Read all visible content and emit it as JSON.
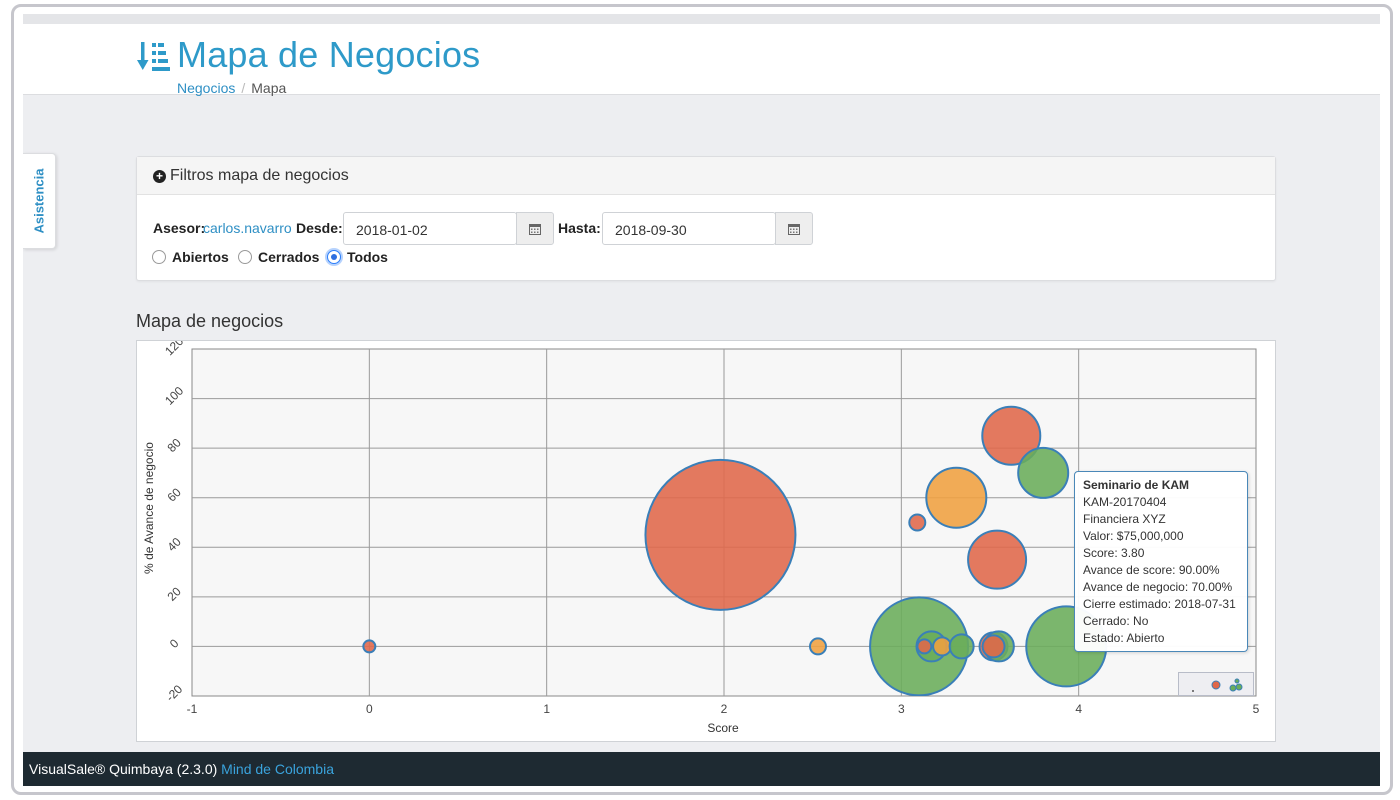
{
  "header": {
    "title": "Mapa de Negocios",
    "breadcrumb": {
      "parent": "Negocios",
      "separator": "/",
      "current": "Mapa"
    }
  },
  "side_tab": {
    "label": "Asistencia"
  },
  "filters": {
    "panel_title": "Filtros mapa de negocios",
    "asesor_label": "Asesor:",
    "asesor_value": "carlos.navarro",
    "desde_label": "Desde:",
    "desde_value": "2018-01-02",
    "hasta_label": "Hasta:",
    "hasta_value": "2018-09-30",
    "status_options": [
      {
        "label": "Abiertos",
        "selected": false
      },
      {
        "label": "Cerrados",
        "selected": false
      },
      {
        "label": "Todos",
        "selected": true
      }
    ]
  },
  "chart_section": {
    "heading": "Mapa de negocios"
  },
  "tooltip": {
    "title": "Seminario de KAM",
    "code": "KAM-20170404",
    "company": "Financiera XYZ",
    "valor": "Valor: $75,000,000",
    "score": "Score: 3.80",
    "avance_score": "Avance de score: 90.00%",
    "avance_negocio": "Avance de negocio: 70.00%",
    "cierre": "Cierre estimado: 2018-07-31",
    "cerrado": "Cerrado: No",
    "estado": "Estado: Abierto"
  },
  "colors": {
    "accent": "#2e9ac9",
    "link": "#2e8fc4",
    "footer_bg": "#1e2a32",
    "bubble_green": "#6aad5a",
    "bubble_red": "#e0684a",
    "bubble_orange": "#f0a040",
    "bubble_stroke": "#3a7fb8"
  },
  "icons": [
    "sort-list-icon",
    "plus-circle-icon",
    "calendar-icon"
  ],
  "chart_data": {
    "type": "scatter",
    "title": "",
    "xlabel": "Score",
    "ylabel": "% de Avance de negocio",
    "xlim": [
      -1,
      5
    ],
    "ylim": [
      -20,
      120
    ],
    "x_ticks": [
      -1,
      0,
      1,
      2,
      3,
      4,
      5
    ],
    "y_ticks": [
      -20,
      0,
      20,
      40,
      60,
      80,
      100,
      120
    ],
    "grid": true,
    "legend": "none",
    "points": [
      {
        "x": 0.0,
        "y": 0,
        "r": 6,
        "color": "red"
      },
      {
        "x": 1.98,
        "y": 45,
        "r": 75,
        "color": "red"
      },
      {
        "x": 2.53,
        "y": 0,
        "r": 8,
        "color": "orange"
      },
      {
        "x": 3.09,
        "y": 50,
        "r": 8,
        "color": "red"
      },
      {
        "x": 3.1,
        "y": 0,
        "r": 49,
        "color": "green"
      },
      {
        "x": 3.17,
        "y": 0,
        "r": 15,
        "color": "green"
      },
      {
        "x": 3.13,
        "y": 0,
        "r": 7,
        "color": "red"
      },
      {
        "x": 3.23,
        "y": 0,
        "r": 9,
        "color": "orange"
      },
      {
        "x": 3.34,
        "y": 0,
        "r": 12,
        "color": "green"
      },
      {
        "x": 3.31,
        "y": 60,
        "r": 30,
        "color": "orange"
      },
      {
        "x": 3.52,
        "y": 0,
        "r": 14,
        "color": "red"
      },
      {
        "x": 3.55,
        "y": 0,
        "r": 15,
        "color": "green"
      },
      {
        "x": 3.52,
        "y": 0,
        "r": 11,
        "color": "red"
      },
      {
        "x": 3.54,
        "y": 35,
        "r": 29,
        "color": "red"
      },
      {
        "x": 3.62,
        "y": 85,
        "r": 29,
        "color": "red"
      },
      {
        "x": 3.8,
        "y": 70,
        "r": 25,
        "color": "green"
      },
      {
        "x": 3.93,
        "y": 0,
        "r": 40,
        "color": "green"
      }
    ]
  },
  "footer": {
    "product": "VisualSale® Quimbaya (2.3.0)",
    "company": "Mind de Colombia"
  }
}
